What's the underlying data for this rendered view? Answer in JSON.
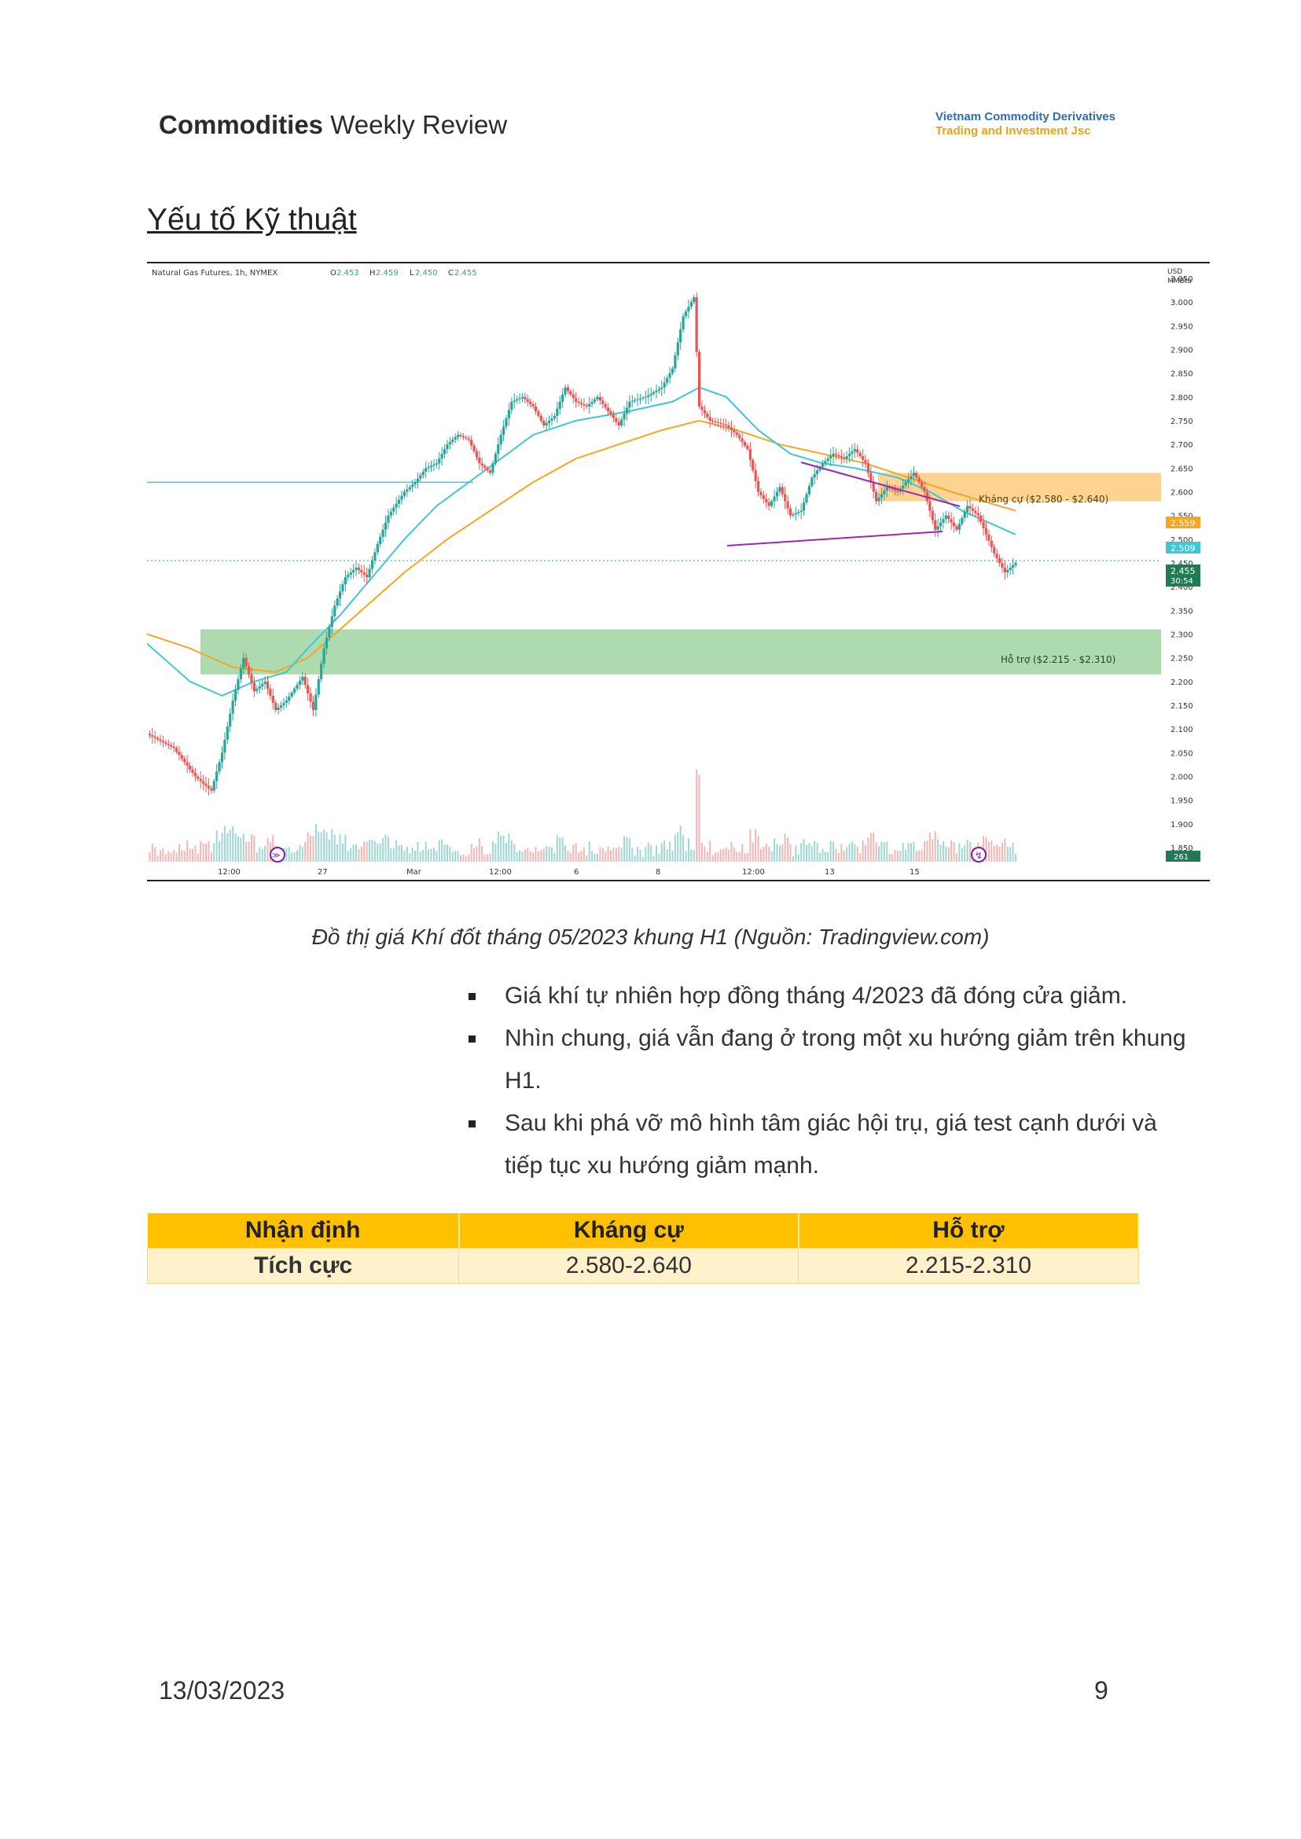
{
  "header": {
    "title_bold": "Commodities",
    "title_rest": " Weekly Review",
    "company_line1": "Vietnam Commodity Derivatives",
    "company_line2": "Trading and Investment Jsc"
  },
  "section_title": "Yếu tố Kỹ thuật",
  "chart": {
    "info_label": "Natural Gas Futures, 1h, NYMEX",
    "ohlc": {
      "O": "2.453",
      "H": "2.459",
      "L": "2.450",
      "C": "2.455"
    },
    "currency_line1": "USD",
    "currency_line2": "MMBtu",
    "resistance_label": "Kháng cự ($2.580 - $2.640)",
    "support_label": "Hỗ trợ ($2.215 - $2.310)",
    "price_tags": {
      "orange_ma": "2.559",
      "cyan_ma": "2.509",
      "last_price": "2.455",
      "countdown": "30:54",
      "volume": "261"
    },
    "colors": {
      "up": "#26a69a",
      "down": "#ef5350",
      "ma_fast": "#3fc7d6",
      "ma_slow": "#f5a623",
      "support_zone": "#a5d6a7",
      "resistance_zone": "#ffcc80",
      "triangle": "#9c27b0"
    }
  },
  "chart_data": {
    "type": "candlestick",
    "y_ticks": [
      "3.050",
      "3.000",
      "2.950",
      "2.900",
      "2.850",
      "2.800",
      "2.750",
      "2.700",
      "2.650",
      "2.600",
      "2.550",
      "2.500",
      "2.450",
      "2.400",
      "2.350",
      "2.300",
      "2.250",
      "2.200",
      "2.150",
      "2.100",
      "2.050",
      "2.000",
      "1.950",
      "1.900",
      "1.850"
    ],
    "ylim": [
      1.85,
      3.05
    ],
    "x_ticks": [
      "12:00",
      "27",
      "Mar",
      "12:00",
      "6",
      "8",
      "12:00",
      "13",
      "15"
    ],
    "price_path": [
      [
        0,
        2.09
      ],
      [
        5,
        2.06
      ],
      [
        9,
        2.0
      ],
      [
        12,
        1.97
      ],
      [
        14,
        2.05
      ],
      [
        16,
        2.16
      ],
      [
        18,
        2.25
      ],
      [
        20,
        2.18
      ],
      [
        22,
        2.2
      ],
      [
        24,
        2.14
      ],
      [
        26,
        2.16
      ],
      [
        29,
        2.21
      ],
      [
        31,
        2.14
      ],
      [
        33,
        2.27
      ],
      [
        35,
        2.36
      ],
      [
        37,
        2.42
      ],
      [
        39,
        2.44
      ],
      [
        41,
        2.42
      ],
      [
        43,
        2.49
      ],
      [
        45,
        2.55
      ],
      [
        48,
        2.6
      ],
      [
        50,
        2.62
      ],
      [
        52,
        2.65
      ],
      [
        54,
        2.66
      ],
      [
        56,
        2.7
      ],
      [
        58,
        2.72
      ],
      [
        60,
        2.71
      ],
      [
        62,
        2.66
      ],
      [
        64,
        2.64
      ],
      [
        66,
        2.72
      ],
      [
        68,
        2.79
      ],
      [
        70,
        2.8
      ],
      [
        72,
        2.78
      ],
      [
        74,
        2.74
      ],
      [
        76,
        2.76
      ],
      [
        78,
        2.82
      ],
      [
        80,
        2.79
      ],
      [
        82,
        2.78
      ],
      [
        84,
        2.8
      ],
      [
        86,
        2.77
      ],
      [
        88,
        2.74
      ],
      [
        90,
        2.79
      ],
      [
        93,
        2.8
      ],
      [
        96,
        2.82
      ],
      [
        98,
        2.86
      ],
      [
        100,
        2.97
      ],
      [
        102,
        3.01
      ],
      [
        103,
        2.78
      ],
      [
        105,
        2.75
      ],
      [
        108,
        2.74
      ],
      [
        110,
        2.72
      ],
      [
        112,
        2.69
      ],
      [
        114,
        2.6
      ],
      [
        116,
        2.57
      ],
      [
        118,
        2.61
      ],
      [
        120,
        2.55
      ],
      [
        122,
        2.56
      ],
      [
        124,
        2.63
      ],
      [
        126,
        2.66
      ],
      [
        128,
        2.68
      ],
      [
        130,
        2.67
      ],
      [
        132,
        2.69
      ],
      [
        134,
        2.66
      ],
      [
        136,
        2.58
      ],
      [
        138,
        2.61
      ],
      [
        140,
        2.6
      ],
      [
        143,
        2.64
      ],
      [
        145,
        2.6
      ],
      [
        147,
        2.52
      ],
      [
        149,
        2.55
      ],
      [
        151,
        2.52
      ],
      [
        153,
        2.57
      ],
      [
        155,
        2.55
      ],
      [
        158,
        2.47
      ],
      [
        160,
        2.43
      ],
      [
        162,
        2.45
      ]
    ],
    "ma_fast": [
      [
        0,
        2.28
      ],
      [
        8,
        2.2
      ],
      [
        14,
        2.17
      ],
      [
        20,
        2.2
      ],
      [
        26,
        2.22
      ],
      [
        30,
        2.27
      ],
      [
        36,
        2.34
      ],
      [
        42,
        2.42
      ],
      [
        48,
        2.5
      ],
      [
        54,
        2.57
      ],
      [
        60,
        2.62
      ],
      [
        66,
        2.67
      ],
      [
        72,
        2.72
      ],
      [
        80,
        2.75
      ],
      [
        90,
        2.77
      ],
      [
        98,
        2.79
      ],
      [
        103,
        2.82
      ],
      [
        108,
        2.8
      ],
      [
        114,
        2.73
      ],
      [
        120,
        2.68
      ],
      [
        126,
        2.66
      ],
      [
        132,
        2.65
      ],
      [
        140,
        2.63
      ],
      [
        146,
        2.6
      ],
      [
        152,
        2.56
      ],
      [
        158,
        2.53
      ],
      [
        162,
        2.51
      ]
    ],
    "ma_slow": [
      [
        0,
        2.3
      ],
      [
        8,
        2.27
      ],
      [
        16,
        2.23
      ],
      [
        24,
        2.22
      ],
      [
        30,
        2.25
      ],
      [
        36,
        2.31
      ],
      [
        42,
        2.37
      ],
      [
        48,
        2.43
      ],
      [
        56,
        2.5
      ],
      [
        64,
        2.56
      ],
      [
        72,
        2.62
      ],
      [
        80,
        2.67
      ],
      [
        88,
        2.7
      ],
      [
        96,
        2.73
      ],
      [
        103,
        2.75
      ],
      [
        110,
        2.73
      ],
      [
        118,
        2.7
      ],
      [
        126,
        2.68
      ],
      [
        134,
        2.66
      ],
      [
        142,
        2.63
      ],
      [
        150,
        2.6
      ],
      [
        162,
        2.56
      ]
    ],
    "resistance_zone": [
      2.58,
      2.64
    ],
    "support_zone": [
      2.215,
      2.31
    ],
    "last_price": 2.455
  },
  "caption": "Đồ thị giá Khí đốt tháng 05/2023 khung H1 (Nguồn: Tradingview.com)",
  "bullets": [
    "Giá khí tự nhiên hợp đồng tháng 4/2023 đã đóng cửa giảm.",
    "Nhìn chung, giá vẫn đang ở trong một xu hướng giảm trên khung H1.",
    "Sau khi phá vỡ mô hình tâm giác hội trụ, giá test cạnh dưới và tiếp tục xu hướng giảm mạnh."
  ],
  "table": {
    "headers": [
      "Nhận định",
      "Kháng cự",
      "Hỗ trợ"
    ],
    "row": [
      "Tích cực",
      "2.580-2.640",
      "2.215-2.310"
    ]
  },
  "footer": {
    "date": "13/03/2023",
    "page": "9"
  }
}
